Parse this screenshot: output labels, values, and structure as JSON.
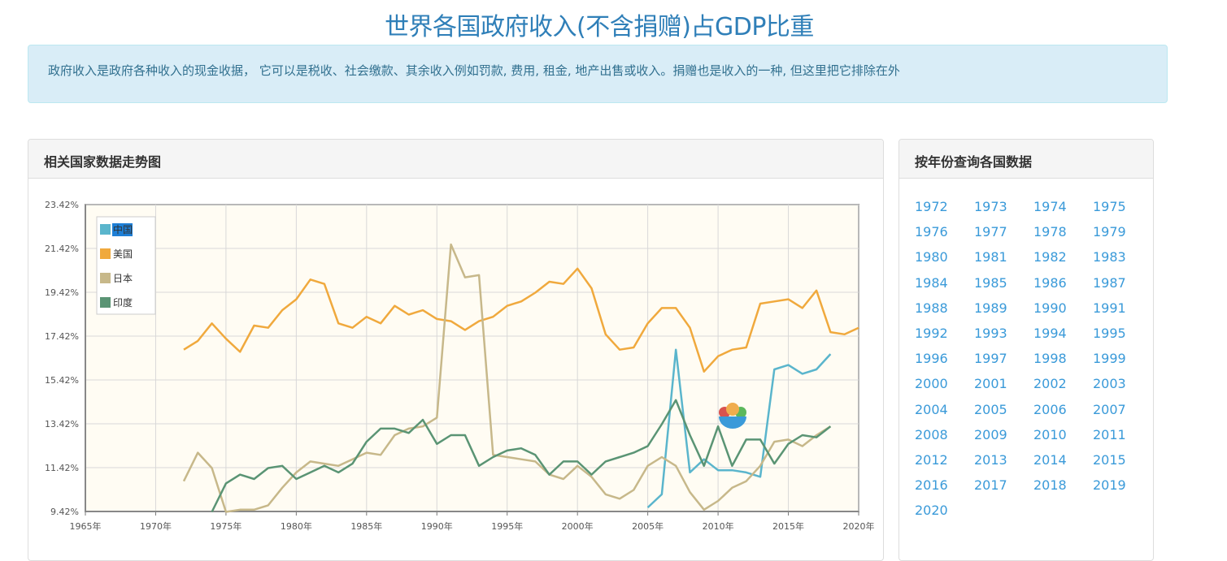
{
  "page": {
    "title": "世界各国政府收入(不含捐赠)占GDP比重",
    "description": "政府收入是政府各种收入的现金收据， 它可以是税收、社会缴款、其余收入例如罚款, 费用, 租金, 地产出售或收入。捐赠也是收入的一种, 但这里把它排除在外"
  },
  "chart_panel": {
    "title": "相关国家数据走势图"
  },
  "year_panel": {
    "title": "按年份查询各国数据",
    "years": [
      "1972",
      "1973",
      "1974",
      "1975",
      "1976",
      "1977",
      "1978",
      "1979",
      "1980",
      "1981",
      "1982",
      "1983",
      "1984",
      "1985",
      "1986",
      "1987",
      "1988",
      "1989",
      "1990",
      "1991",
      "1992",
      "1993",
      "1994",
      "1995",
      "1996",
      "1997",
      "1998",
      "1999",
      "2000",
      "2001",
      "2002",
      "2003",
      "2004",
      "2005",
      "2006",
      "2007",
      "2008",
      "2009",
      "2010",
      "2011",
      "2012",
      "2013",
      "2014",
      "2015",
      "2016",
      "2017",
      "2018",
      "2019",
      "2020"
    ]
  },
  "colors": {
    "china": "#5ab5cc",
    "usa": "#f0a93d",
    "japan": "#c7b88a",
    "india": "#5a9474",
    "link": "#3a9ad9",
    "title": "#2f7fb8"
  },
  "chart_data": {
    "type": "line",
    "xlabel": "",
    "ylabel": "",
    "xlim": [
      1965,
      2020
    ],
    "ylim": [
      9.42,
      23.42
    ],
    "x_ticks": [
      1965,
      1970,
      1975,
      1980,
      1985,
      1990,
      1995,
      2000,
      2005,
      2010,
      2015,
      2020
    ],
    "x_tick_labels": [
      "1965年",
      "1970年",
      "1975年",
      "1980年",
      "1985年",
      "1990年",
      "1995年",
      "2000年",
      "2005年",
      "2010年",
      "2015年",
      "2020年"
    ],
    "y_ticks": [
      9.42,
      11.42,
      13.42,
      15.42,
      17.42,
      19.42,
      21.42,
      23.42
    ],
    "y_tick_labels": [
      "9.42%",
      "11.42%",
      "13.42%",
      "15.42%",
      "17.42%",
      "19.42%",
      "21.42%",
      "23.42%"
    ],
    "grid": true,
    "legend": "top-left",
    "series": [
      {
        "name": "中国",
        "key": "china",
        "points": [
          [
            2005,
            9.6
          ],
          [
            2006,
            10.2
          ],
          [
            2007,
            16.8
          ],
          [
            2008,
            11.2
          ],
          [
            2009,
            11.8
          ],
          [
            2010,
            11.3
          ],
          [
            2011,
            11.3
          ],
          [
            2012,
            11.2
          ],
          [
            2013,
            11.0
          ],
          [
            2014,
            15.9
          ],
          [
            2015,
            16.1
          ],
          [
            2016,
            15.7
          ],
          [
            2017,
            15.9
          ],
          [
            2018,
            16.6
          ]
        ]
      },
      {
        "name": "美国",
        "key": "usa",
        "points": [
          [
            1972,
            16.8
          ],
          [
            1973,
            17.2
          ],
          [
            1974,
            18.0
          ],
          [
            1975,
            17.3
          ],
          [
            1976,
            16.7
          ],
          [
            1977,
            17.9
          ],
          [
            1978,
            17.8
          ],
          [
            1979,
            18.6
          ],
          [
            1980,
            19.1
          ],
          [
            1981,
            20.0
          ],
          [
            1982,
            19.8
          ],
          [
            1983,
            18.0
          ],
          [
            1984,
            17.8
          ],
          [
            1985,
            18.3
          ],
          [
            1986,
            18.0
          ],
          [
            1987,
            18.8
          ],
          [
            1988,
            18.4
          ],
          [
            1989,
            18.6
          ],
          [
            1990,
            18.2
          ],
          [
            1991,
            18.1
          ],
          [
            1992,
            17.7
          ],
          [
            1993,
            18.1
          ],
          [
            1994,
            18.3
          ],
          [
            1995,
            18.8
          ],
          [
            1996,
            19.0
          ],
          [
            1997,
            19.4
          ],
          [
            1998,
            19.9
          ],
          [
            1999,
            19.8
          ],
          [
            2000,
            20.5
          ],
          [
            2001,
            19.6
          ],
          [
            2002,
            17.5
          ],
          [
            2003,
            16.8
          ],
          [
            2004,
            16.9
          ],
          [
            2005,
            18.0
          ],
          [
            2006,
            18.7
          ],
          [
            2007,
            18.7
          ],
          [
            2008,
            17.8
          ],
          [
            2009,
            15.8
          ],
          [
            2010,
            16.5
          ],
          [
            2011,
            16.8
          ],
          [
            2012,
            16.9
          ],
          [
            2013,
            18.9
          ],
          [
            2014,
            19.0
          ],
          [
            2015,
            19.1
          ],
          [
            2016,
            18.7
          ],
          [
            2017,
            19.5
          ],
          [
            2018,
            17.6
          ],
          [
            2019,
            17.5
          ],
          [
            2020,
            17.8
          ]
        ]
      },
      {
        "name": "日本",
        "key": "japan",
        "points": [
          [
            1972,
            10.8
          ],
          [
            1973,
            12.1
          ],
          [
            1974,
            11.4
          ],
          [
            1975,
            9.4
          ],
          [
            1976,
            9.5
          ],
          [
            1977,
            9.5
          ],
          [
            1978,
            9.7
          ],
          [
            1979,
            10.5
          ],
          [
            1980,
            11.2
          ],
          [
            1981,
            11.7
          ],
          [
            1982,
            11.6
          ],
          [
            1983,
            11.5
          ],
          [
            1984,
            11.8
          ],
          [
            1985,
            12.1
          ],
          [
            1986,
            12.0
          ],
          [
            1987,
            12.9
          ],
          [
            1988,
            13.2
          ],
          [
            1989,
            13.3
          ],
          [
            1990,
            13.7
          ],
          [
            1991,
            21.6
          ],
          [
            1992,
            20.1
          ],
          [
            1993,
            20.2
          ],
          [
            1994,
            12.0
          ],
          [
            1995,
            11.9
          ],
          [
            1996,
            11.8
          ],
          [
            1997,
            11.7
          ],
          [
            1998,
            11.1
          ],
          [
            1999,
            10.9
          ],
          [
            2000,
            11.5
          ],
          [
            2001,
            11.0
          ],
          [
            2002,
            10.2
          ],
          [
            2003,
            10.0
          ],
          [
            2004,
            10.4
          ],
          [
            2005,
            11.5
          ],
          [
            2006,
            11.9
          ],
          [
            2007,
            11.5
          ],
          [
            2008,
            10.3
          ],
          [
            2009,
            9.5
          ],
          [
            2010,
            9.9
          ],
          [
            2011,
            10.5
          ],
          [
            2012,
            10.8
          ],
          [
            2013,
            11.5
          ],
          [
            2014,
            12.6
          ],
          [
            2015,
            12.7
          ],
          [
            2016,
            12.4
          ],
          [
            2017,
            12.9
          ],
          [
            2018,
            13.3
          ]
        ]
      },
      {
        "name": "印度",
        "key": "india",
        "points": [
          [
            1974,
            9.4
          ],
          [
            1975,
            10.7
          ],
          [
            1976,
            11.1
          ],
          [
            1977,
            10.9
          ],
          [
            1978,
            11.4
          ],
          [
            1979,
            11.5
          ],
          [
            1980,
            10.9
          ],
          [
            1981,
            11.2
          ],
          [
            1982,
            11.5
          ],
          [
            1983,
            11.2
          ],
          [
            1984,
            11.6
          ],
          [
            1985,
            12.6
          ],
          [
            1986,
            13.2
          ],
          [
            1987,
            13.2
          ],
          [
            1988,
            13.0
          ],
          [
            1989,
            13.6
          ],
          [
            1990,
            12.5
          ],
          [
            1991,
            12.9
          ],
          [
            1992,
            12.9
          ],
          [
            1993,
            11.5
          ],
          [
            1994,
            11.9
          ],
          [
            1995,
            12.2
          ],
          [
            1996,
            12.3
          ],
          [
            1997,
            12.0
          ],
          [
            1998,
            11.1
          ],
          [
            1999,
            11.7
          ],
          [
            2000,
            11.7
          ],
          [
            2001,
            11.1
          ],
          [
            2002,
            11.7
          ],
          [
            2003,
            11.9
          ],
          [
            2004,
            12.1
          ],
          [
            2005,
            12.4
          ],
          [
            2006,
            13.4
          ],
          [
            2007,
            14.5
          ],
          [
            2008,
            12.9
          ],
          [
            2009,
            11.5
          ],
          [
            2010,
            13.3
          ],
          [
            2011,
            11.5
          ],
          [
            2012,
            12.7
          ],
          [
            2013,
            12.7
          ],
          [
            2014,
            11.6
          ],
          [
            2015,
            12.5
          ],
          [
            2016,
            12.9
          ],
          [
            2017,
            12.8
          ],
          [
            2018,
            13.3
          ]
        ]
      }
    ]
  }
}
